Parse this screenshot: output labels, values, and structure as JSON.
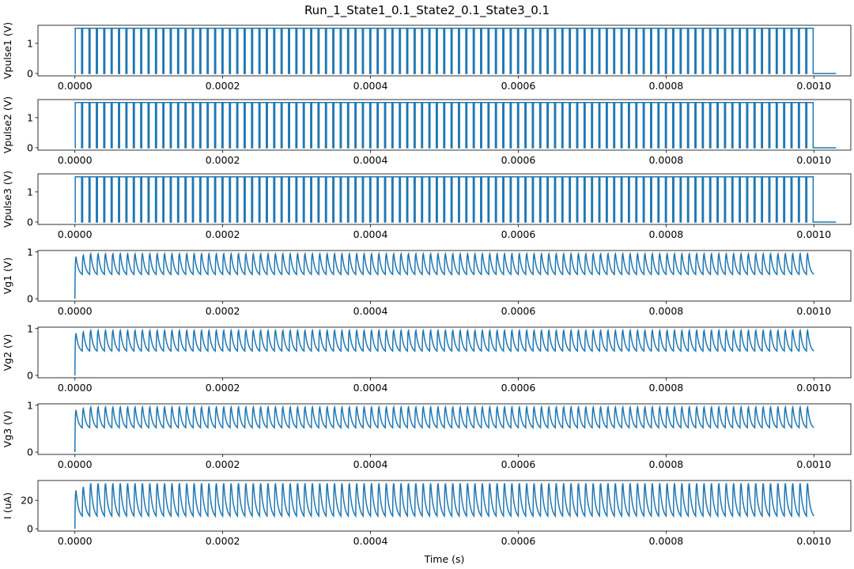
{
  "chart_data": {
    "title": "Run_1_State1_0.1_State2_0.1_State3_0.1",
    "xlabel": "Time (s)",
    "x_ticks": [
      "0.0000",
      "0.0002",
      "0.0004",
      "0.0006",
      "0.0008",
      "0.0010"
    ],
    "x_tick_values": [
      0,
      0.0002,
      0.0004,
      0.0006,
      0.0008,
      0.001
    ],
    "xlim": [
      -5e-05,
      0.00105
    ],
    "line_color": "#1f77b4",
    "pulse_count": 100,
    "subplots": [
      {
        "type": "line",
        "ylabel": "Vpulse1 (V)",
        "ylim": [
          -0.08,
          1.6
        ],
        "yticks": [
          0,
          1
        ],
        "ytick_labels": [
          "0",
          "1"
        ],
        "kind": "pulse",
        "low": 0,
        "high": 1.5,
        "period": 1e-05,
        "width": 8.5e-06,
        "start": 5e-07,
        "pulses": 100,
        "end": 0.001
      },
      {
        "type": "line",
        "ylabel": "Vpulse2 (V)",
        "ylim": [
          -0.08,
          1.6
        ],
        "yticks": [
          0,
          1
        ],
        "ytick_labels": [
          "0",
          "1"
        ],
        "kind": "pulse",
        "low": 0,
        "high": 1.5,
        "period": 1e-05,
        "width": 8.5e-06,
        "start": 5e-07,
        "pulses": 100,
        "end": 0.001
      },
      {
        "type": "line",
        "ylabel": "Vpulse3 (V)",
        "ylim": [
          -0.08,
          1.6
        ],
        "yticks": [
          0,
          1
        ],
        "ytick_labels": [
          "0",
          "1"
        ],
        "kind": "pulse",
        "low": 0,
        "high": 1.5,
        "period": 1e-05,
        "width": 8.5e-06,
        "start": 5e-07,
        "pulses": 100,
        "end": 0.001
      },
      {
        "type": "line",
        "ylabel": "Vg1 (V)",
        "ylim": [
          -0.05,
          1.03
        ],
        "yticks": [
          0,
          1
        ],
        "ytick_labels": [
          "0",
          "1"
        ],
        "kind": "charge",
        "start_value": 0.0,
        "first_peak": 0.9,
        "peak": 0.96,
        "trough": 0.52,
        "period": 1e-05,
        "rise": 1.5e-06,
        "pulses": 100,
        "end": 0.001
      },
      {
        "type": "line",
        "ylabel": "Vg2 (V)",
        "ylim": [
          -0.05,
          1.03
        ],
        "yticks": [
          0,
          1
        ],
        "ytick_labels": [
          "0",
          "1"
        ],
        "kind": "charge",
        "start_value": 0.0,
        "first_peak": 0.9,
        "peak": 0.96,
        "trough": 0.52,
        "period": 1e-05,
        "rise": 1.5e-06,
        "pulses": 100,
        "end": 0.001
      },
      {
        "type": "line",
        "ylabel": "Vg3 (V)",
        "ylim": [
          -0.05,
          1.03
        ],
        "yticks": [
          0,
          1
        ],
        "ytick_labels": [
          "0",
          "1"
        ],
        "kind": "charge",
        "start_value": 0.0,
        "first_peak": 0.9,
        "peak": 0.96,
        "trough": 0.52,
        "period": 1e-05,
        "rise": 1.5e-06,
        "pulses": 100,
        "end": 0.001
      },
      {
        "type": "line",
        "ylabel": "I (uA)",
        "ylim": [
          -1.6,
          34
        ],
        "yticks": [
          0,
          20
        ],
        "ytick_labels": [
          "0",
          "20"
        ],
        "kind": "charge",
        "start_value": 0.0,
        "first_peak": 27,
        "peak": 32,
        "trough": 9,
        "period": 1e-05,
        "rise": 1.5e-06,
        "pulses": 100,
        "end": 0.001
      }
    ]
  }
}
